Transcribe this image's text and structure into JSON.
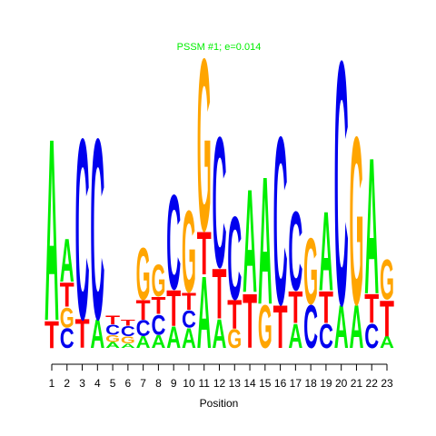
{
  "chart_data": {
    "type": "logo",
    "title": "PSSM #1; e=0.014",
    "title_color": "#00ee00",
    "x_label": "Position",
    "xlim": [
      1,
      23
    ],
    "xticks": [
      1,
      2,
      3,
      4,
      5,
      6,
      7,
      8,
      9,
      10,
      11,
      12,
      13,
      14,
      15,
      16,
      17,
      18,
      19,
      20,
      21,
      22,
      23
    ],
    "ylim": [
      0,
      2
    ],
    "colors": {
      "A": "#00ee00",
      "C": "#0000ee",
      "G": "#ffa500",
      "T": "#ff0000"
    },
    "stacks": [
      {
        "letters": [
          "T",
          "A"
        ],
        "heights": [
          0.19,
          1.27
        ]
      },
      {
        "letters": [
          "C",
          "G",
          "T",
          "A"
        ],
        "heights": [
          0.14,
          0.14,
          0.17,
          0.3
        ]
      },
      {
        "letters": [
          "T",
          "C"
        ],
        "heights": [
          0.2,
          1.26
        ]
      },
      {
        "letters": [
          "A",
          "C"
        ],
        "heights": [
          0.2,
          1.26
        ]
      },
      {
        "letters": [
          "A",
          "G",
          "C",
          "T"
        ],
        "heights": [
          0.04,
          0.05,
          0.07,
          0.06
        ]
      },
      {
        "letters": [
          "A",
          "G",
          "C",
          "T"
        ],
        "heights": [
          0.03,
          0.05,
          0.07,
          0.04
        ]
      },
      {
        "letters": [
          "A",
          "C",
          "T",
          "G"
        ],
        "heights": [
          0.08,
          0.11,
          0.14,
          0.36
        ]
      },
      {
        "letters": [
          "A",
          "C",
          "T",
          "G"
        ],
        "heights": [
          0.09,
          0.14,
          0.12,
          0.22
        ]
      },
      {
        "letters": [
          "A",
          "T",
          "C"
        ],
        "heights": [
          0.15,
          0.25,
          0.66
        ]
      },
      {
        "letters": [
          "A",
          "C",
          "T",
          "G"
        ],
        "heights": [
          0.14,
          0.12,
          0.12,
          0.57
        ]
      },
      {
        "letters": [
          "A",
          "T",
          "G"
        ],
        "heights": [
          0.5,
          0.3,
          1.2
        ]
      },
      {
        "letters": [
          "A",
          "T",
          "C"
        ],
        "heights": [
          0.2,
          0.35,
          0.91
        ]
      },
      {
        "letters": [
          "G",
          "T",
          "C"
        ],
        "heights": [
          0.13,
          0.2,
          0.58
        ]
      },
      {
        "letters": [
          "T",
          "A"
        ],
        "heights": [
          0.38,
          0.72
        ]
      },
      {
        "letters": [
          "G",
          "A"
        ],
        "heights": [
          0.3,
          0.89
        ]
      },
      {
        "letters": [
          "T",
          "C"
        ],
        "heights": [
          0.3,
          1.17
        ]
      },
      {
        "letters": [
          "A",
          "T",
          "C"
        ],
        "heights": [
          0.17,
          0.22,
          0.55
        ]
      },
      {
        "letters": [
          "C",
          "G"
        ],
        "heights": [
          0.3,
          0.46
        ]
      },
      {
        "letters": [
          "C",
          "T",
          "A"
        ],
        "heights": [
          0.17,
          0.22,
          0.55
        ]
      },
      {
        "letters": [
          "A",
          "C"
        ],
        "heights": [
          0.3,
          1.7
        ]
      },
      {
        "letters": [
          "A",
          "G"
        ],
        "heights": [
          0.3,
          1.17
        ]
      },
      {
        "letters": [
          "C",
          "T",
          "A"
        ],
        "heights": [
          0.17,
          0.2,
          0.95
        ]
      },
      {
        "letters": [
          "A",
          "T",
          "G"
        ],
        "heights": [
          0.08,
          0.25,
          0.28
        ]
      }
    ]
  }
}
